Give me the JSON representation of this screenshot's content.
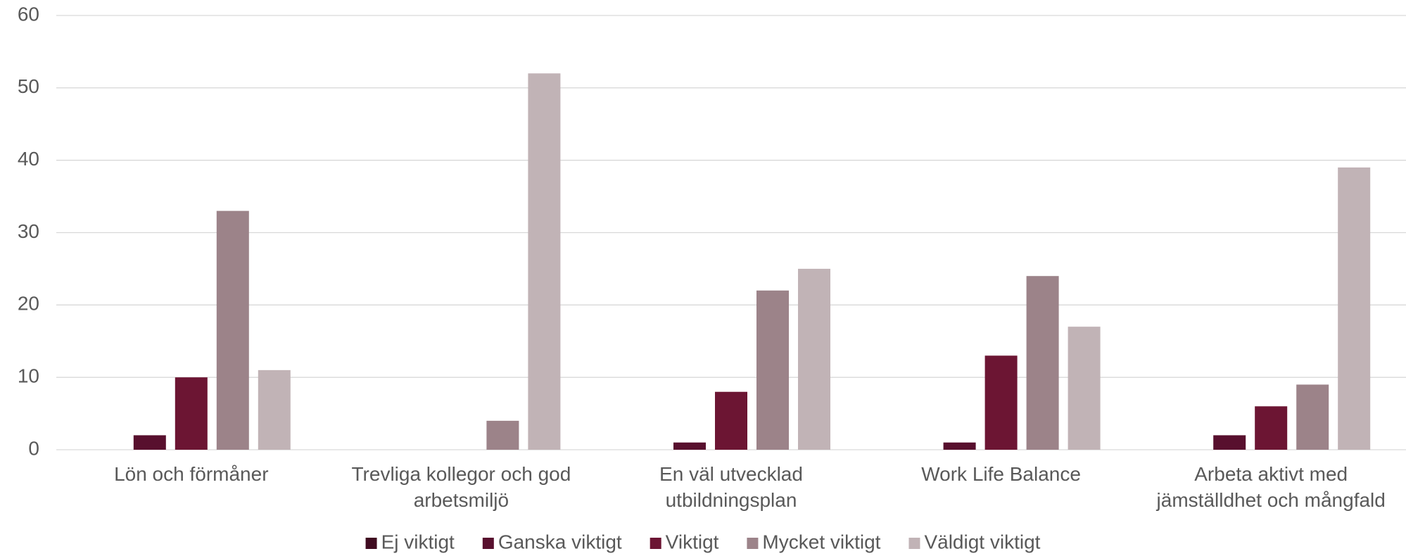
{
  "chart_data": {
    "type": "bar",
    "categories": [
      "Lön och förmåner",
      "Trevliga kollegor och god arbetsmiljö",
      "En väl utvecklad utbildningsplan",
      "Work Life Balance",
      "Arbeta aktivt med jämställdhet och mångfald"
    ],
    "series": [
      {
        "name": "Ej viktigt",
        "color": "#3f0b20",
        "values": [
          0,
          0,
          0,
          0,
          0
        ]
      },
      {
        "name": "Ganska viktigt",
        "color": "#58102e",
        "values": [
          2,
          0,
          1,
          1,
          2
        ]
      },
      {
        "name": "Viktigt",
        "color": "#6c1533",
        "values": [
          10,
          0,
          8,
          13,
          6
        ]
      },
      {
        "name": "Mycket viktigt",
        "color": "#9c8389",
        "values": [
          33,
          4,
          22,
          24,
          9
        ]
      },
      {
        "name": "Väldigt viktigt",
        "color": "#c1b3b6",
        "values": [
          11,
          52,
          25,
          17,
          39
        ]
      }
    ],
    "ylim": [
      0,
      60
    ],
    "yticks": [
      0,
      10,
      20,
      30,
      40,
      50,
      60
    ],
    "grid": true,
    "legend": "bottom"
  }
}
